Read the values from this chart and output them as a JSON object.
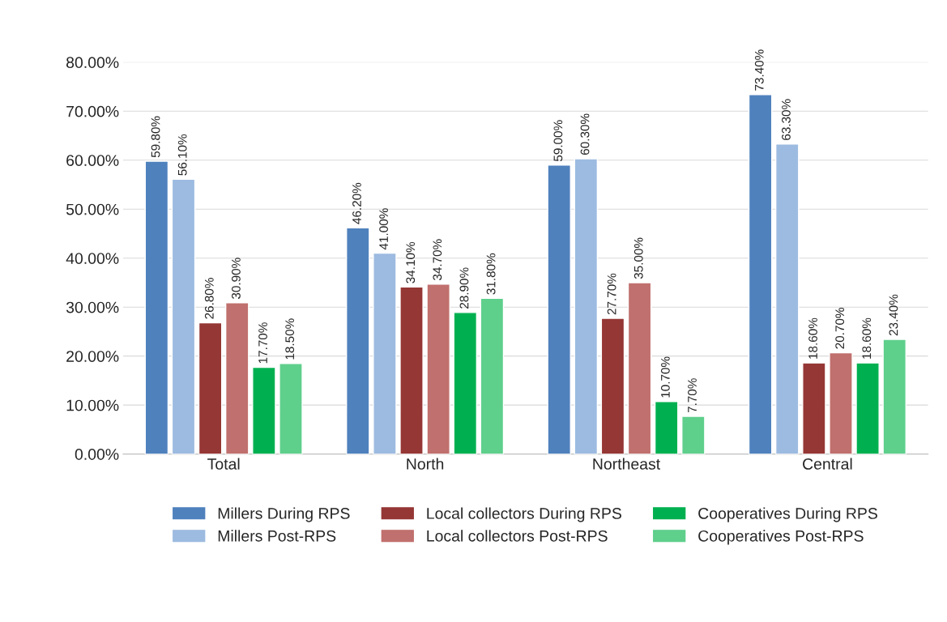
{
  "chart_data": {
    "type": "bar",
    "categories": [
      "Total",
      "North",
      "Northeast",
      "Central"
    ],
    "series": [
      {
        "name": "Millers During RPS",
        "color": "#4f81bd",
        "values": [
          59.8,
          46.2,
          59.0,
          73.4
        ],
        "value_labels": [
          "59.80%",
          "46.20%",
          "59.00%",
          "73.40%"
        ]
      },
      {
        "name": "Millers Post-RPS",
        "color": "#9dbbe0",
        "values": [
          56.1,
          41.0,
          60.3,
          63.3
        ],
        "value_labels": [
          "56.10%",
          "41.00%",
          "60.30%",
          "63.30%"
        ]
      },
      {
        "name": "Local collectors During RPS",
        "color": "#953735",
        "values": [
          26.8,
          34.1,
          27.7,
          18.6
        ],
        "value_labels": [
          "26.80%",
          "34.10%",
          "27.70%",
          "18.60%"
        ]
      },
      {
        "name": "Local collectors Post-RPS",
        "color": "#c0706e",
        "values": [
          30.9,
          34.7,
          35.0,
          20.7
        ],
        "value_labels": [
          "30.90%",
          "34.70%",
          "35.00%",
          "20.70%"
        ]
      },
      {
        "name": "Cooperatives During RPS",
        "color": "#00b050",
        "values": [
          17.7,
          28.9,
          10.7,
          18.6
        ],
        "value_labels": [
          "17.70%",
          "28.90%",
          "10.70%",
          "18.60%"
        ]
      },
      {
        "name": "Cooperatives Post-RPS",
        "color": "#5fcf8c",
        "values": [
          18.5,
          31.8,
          7.7,
          23.4
        ],
        "value_labels": [
          "18.50%",
          "31.80%",
          "7.70%",
          "23.40%"
        ]
      }
    ],
    "ylim": [
      0,
      80
    ],
    "yticks": [
      {
        "value": 0,
        "label": "0.00%"
      },
      {
        "value": 10,
        "label": "10.00%"
      },
      {
        "value": 20,
        "label": "20.00%"
      },
      {
        "value": 30,
        "label": "30.00%"
      },
      {
        "value": 40,
        "label": "40.00%"
      },
      {
        "value": 50,
        "label": "50.00%"
      },
      {
        "value": 60,
        "label": "60.00%"
      },
      {
        "value": 70,
        "label": "70.00%"
      },
      {
        "value": 80,
        "label": "80.00%"
      }
    ],
    "grid": "y",
    "legend": "bottom"
  }
}
